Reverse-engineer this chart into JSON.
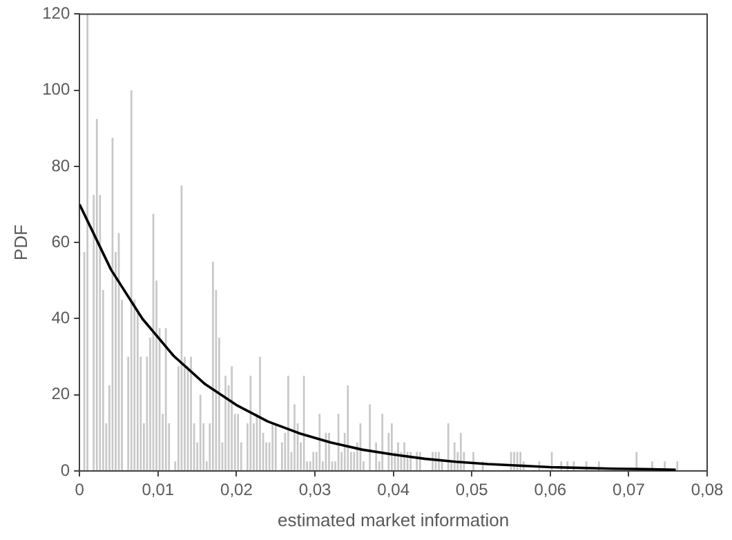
{
  "chart_data": {
    "type": "histogram",
    "xlabel": "estimated market information",
    "ylabel": "PDF",
    "bins": [
      0,
      0.0004,
      0.0008,
      0.0012,
      0.0016,
      0.002,
      0.0024,
      0.0028,
      0.0032,
      0.0036,
      0.004,
      0.0044,
      0.0048,
      0.0052,
      0.0056,
      0.006,
      0.0064,
      0.0068,
      0.0072,
      0.0076,
      0.008,
      0.0084,
      0.0088,
      0.0092,
      0.0096,
      0.01,
      0.0104,
      0.0108,
      0.0112,
      0.0116,
      0.012,
      0.0124,
      0.0128,
      0.0132,
      0.0136,
      0.014,
      0.0144,
      0.0148,
      0.0152,
      0.0156,
      0.016,
      0.0164,
      0.0168,
      0.0172,
      0.0176,
      0.018,
      0.0184,
      0.0188,
      0.0192,
      0.0196,
      0.02,
      0.0204,
      0.0208,
      0.0212,
      0.0216,
      0.022,
      0.0224,
      0.0228,
      0.0232,
      0.0236,
      0.024,
      0.0244,
      0.0248,
      0.0252,
      0.0256,
      0.026,
      0.0264,
      0.0268,
      0.0272,
      0.0276,
      0.028,
      0.0284,
      0.0288,
      0.0292,
      0.0296,
      0.03,
      0.0304,
      0.0308,
      0.0312,
      0.0316,
      0.032,
      0.0324,
      0.0328,
      0.0332,
      0.0336,
      0.034,
      0.0344,
      0.0348,
      0.0352,
      0.0356,
      0.036,
      0.0364,
      0.0368,
      0.0372,
      0.0376,
      0.038,
      0.0384,
      0.0388,
      0.0392,
      0.0396,
      0.04,
      0.0404,
      0.0408,
      0.0412,
      0.0416,
      0.042,
      0.0424,
      0.0428,
      0.0432,
      0.0436,
      0.044,
      0.0444,
      0.0448,
      0.0452,
      0.0456,
      0.046,
      0.0464,
      0.0468,
      0.0472,
      0.0476,
      0.048,
      0.0484,
      0.0488,
      0.0492,
      0.0496,
      0.05,
      0.0504,
      0.0508,
      0.0512,
      0.0516,
      0.052,
      0.0524,
      0.0528,
      0.0532,
      0.0536,
      0.054,
      0.0544,
      0.0548,
      0.0552,
      0.0556,
      0.056,
      0.0564,
      0.0568,
      0.0572,
      0.0576,
      0.058,
      0.0584,
      0.0588,
      0.0592,
      0.0596,
      0.06,
      0.0604,
      0.0608,
      0.0612,
      0.0616,
      0.062,
      0.0624,
      0.0628,
      0.0632,
      0.0636,
      0.064,
      0.0644,
      0.0648,
      0.0652,
      0.0656,
      0.066,
      0.0664,
      0.0668,
      0.0672,
      0.0676,
      0.068,
      0.0684,
      0.0688,
      0.0692,
      0.0696,
      0.07,
      0.0704,
      0.0708,
      0.0712,
      0.0716,
      0.072,
      0.0724,
      0.0728,
      0.0732,
      0.0736,
      0.074,
      0.0744,
      0.0748,
      0.0752,
      0.0756,
      0.076,
      0.0764
    ],
    "series": [
      {
        "color": "#c8c8c8",
        "values": [
          0,
          57.5,
          120,
          0,
          72.5,
          92.5,
          72.5,
          47.5,
          12.5,
          22.5,
          87.5,
          57.5,
          62.5,
          45,
          0,
          30,
          100,
          45,
          42.5,
          30,
          12.5,
          30,
          35,
          67.5,
          50,
          37.5,
          15,
          37.5,
          12.5,
          0,
          2.5,
          27.5,
          75,
          30,
          27.5,
          30,
          12.5,
          7.5,
          20,
          12.5,
          2.5,
          12.5,
          55,
          47.5,
          35,
          7.5,
          25,
          22.5,
          27.5,
          15,
          15,
          7.5,
          0,
          12.5,
          25,
          12.5,
          15,
          30,
          10,
          7.5,
          7.5,
          12.5,
          12.5,
          0,
          7.5,
          10,
          25,
          5,
          17.5,
          12.5,
          7.5,
          25,
          2.5,
          2.5,
          5,
          5,
          15,
          2.5,
          10,
          10,
          2.5,
          2.5,
          15,
          5,
          10,
          22.5,
          5,
          5,
          7.5,
          12.5,
          2.5,
          0,
          17.5,
          0,
          7.5,
          2.5,
          15,
          0,
          10,
          12.5,
          5,
          7.5,
          5,
          7.5,
          5,
          5,
          0,
          5,
          5,
          0,
          0,
          0,
          5,
          5,
          5,
          2.5,
          0,
          12.5,
          2.5,
          7.5,
          5,
          10,
          5,
          0,
          0,
          5,
          0,
          0,
          2.5,
          0,
          0,
          0,
          0,
          0,
          0,
          0,
          0,
          5,
          5,
          5,
          5,
          2.5,
          0,
          0,
          0,
          0,
          2.5,
          0,
          0,
          0,
          5,
          0,
          0,
          2.5,
          0,
          2.5,
          0,
          2.5,
          0,
          0,
          0,
          2.5,
          0,
          0,
          0,
          2.5,
          0,
          0,
          0,
          0,
          0,
          0,
          0,
          0,
          0,
          0,
          0,
          5,
          0,
          0,
          0,
          0,
          2.5,
          0,
          0,
          0,
          2.5,
          0,
          0,
          0,
          2.5
        ]
      },
      {
        "type": "line",
        "color": "#000000",
        "marker": "none",
        "x": [
          0,
          0.004,
          0.008,
          0.012,
          0.016,
          0.02,
          0.024,
          0.028,
          0.032,
          0.036,
          0.04,
          0.044,
          0.048,
          0.052,
          0.056,
          0.06,
          0.064,
          0.068,
          0.072,
          0.076
        ],
        "values": [
          70,
          52.9,
          40,
          30.2,
          22.8,
          17.3,
          13,
          9.9,
          7.5,
          5.6,
          4.3,
          3.2,
          2.4,
          1.8,
          1.4,
          1,
          0.8,
          0.6,
          0.5,
          0.3
        ]
      }
    ],
    "xlim": [
      0,
      0.08
    ],
    "xticks": [
      0,
      {
        "value": 0.01,
        "label": "0,01"
      },
      {
        "value": 0.02,
        "label": "0,02"
      },
      {
        "value": 0.03,
        "label": "0,03"
      },
      {
        "value": 0.04,
        "label": "0,04"
      },
      {
        "value": 0.05,
        "label": "0,05"
      },
      {
        "value": 0.06,
        "label": "0,06"
      },
      {
        "value": 0.07,
        "label": "0,07"
      },
      {
        "value": 0.08,
        "label": "0,08"
      }
    ],
    "ylim": [
      0,
      120
    ],
    "yticks": [
      0,
      20,
      40,
      60,
      80,
      100,
      120
    ],
    "grid": false,
    "legend": false
  }
}
